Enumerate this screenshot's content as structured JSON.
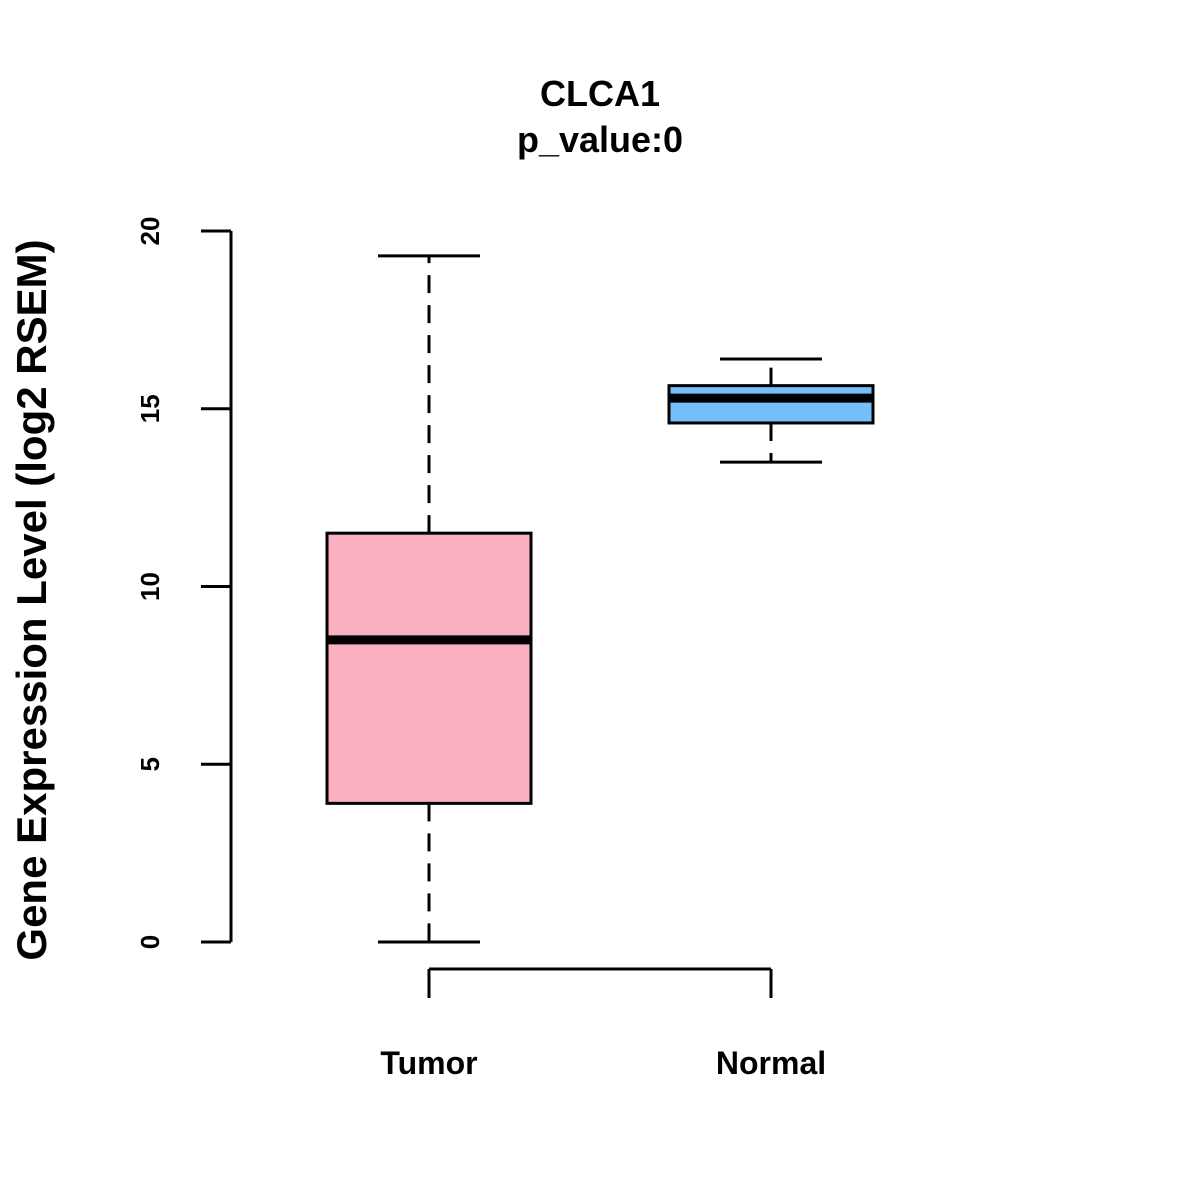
{
  "chart_data": {
    "type": "boxplot",
    "title": "CLCA1",
    "subtitle": "p_value:0",
    "xlabel": "",
    "ylabel": "Gene Expression Level (log2 RSEM)",
    "ylim": [
      0,
      20
    ],
    "yticks": [
      0,
      5,
      10,
      15,
      20
    ],
    "grid": false,
    "legend": "none",
    "groups": [
      {
        "name": "Tumor",
        "color": "#FBB0C1",
        "min": 0.0,
        "q1": 3.9,
        "median": 8.5,
        "q3": 11.5,
        "max": 19.3
      },
      {
        "name": "Normal",
        "color": "#74BFF9",
        "min": 13.5,
        "q1": 14.6,
        "median": 15.3,
        "q3": 15.65,
        "max": 16.4
      }
    ],
    "comparison": {
      "from": "Tumor",
      "to": "Normal"
    }
  }
}
